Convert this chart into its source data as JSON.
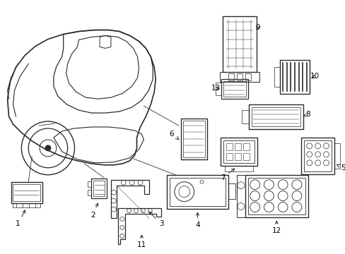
{
  "bg_color": "#ffffff",
  "figsize": [
    4.89,
    3.6
  ],
  "dpi": 100,
  "lc": "#2a2a2a",
  "lw_main": 0.9,
  "lw_thin": 0.55,
  "fs_label": 7.5
}
